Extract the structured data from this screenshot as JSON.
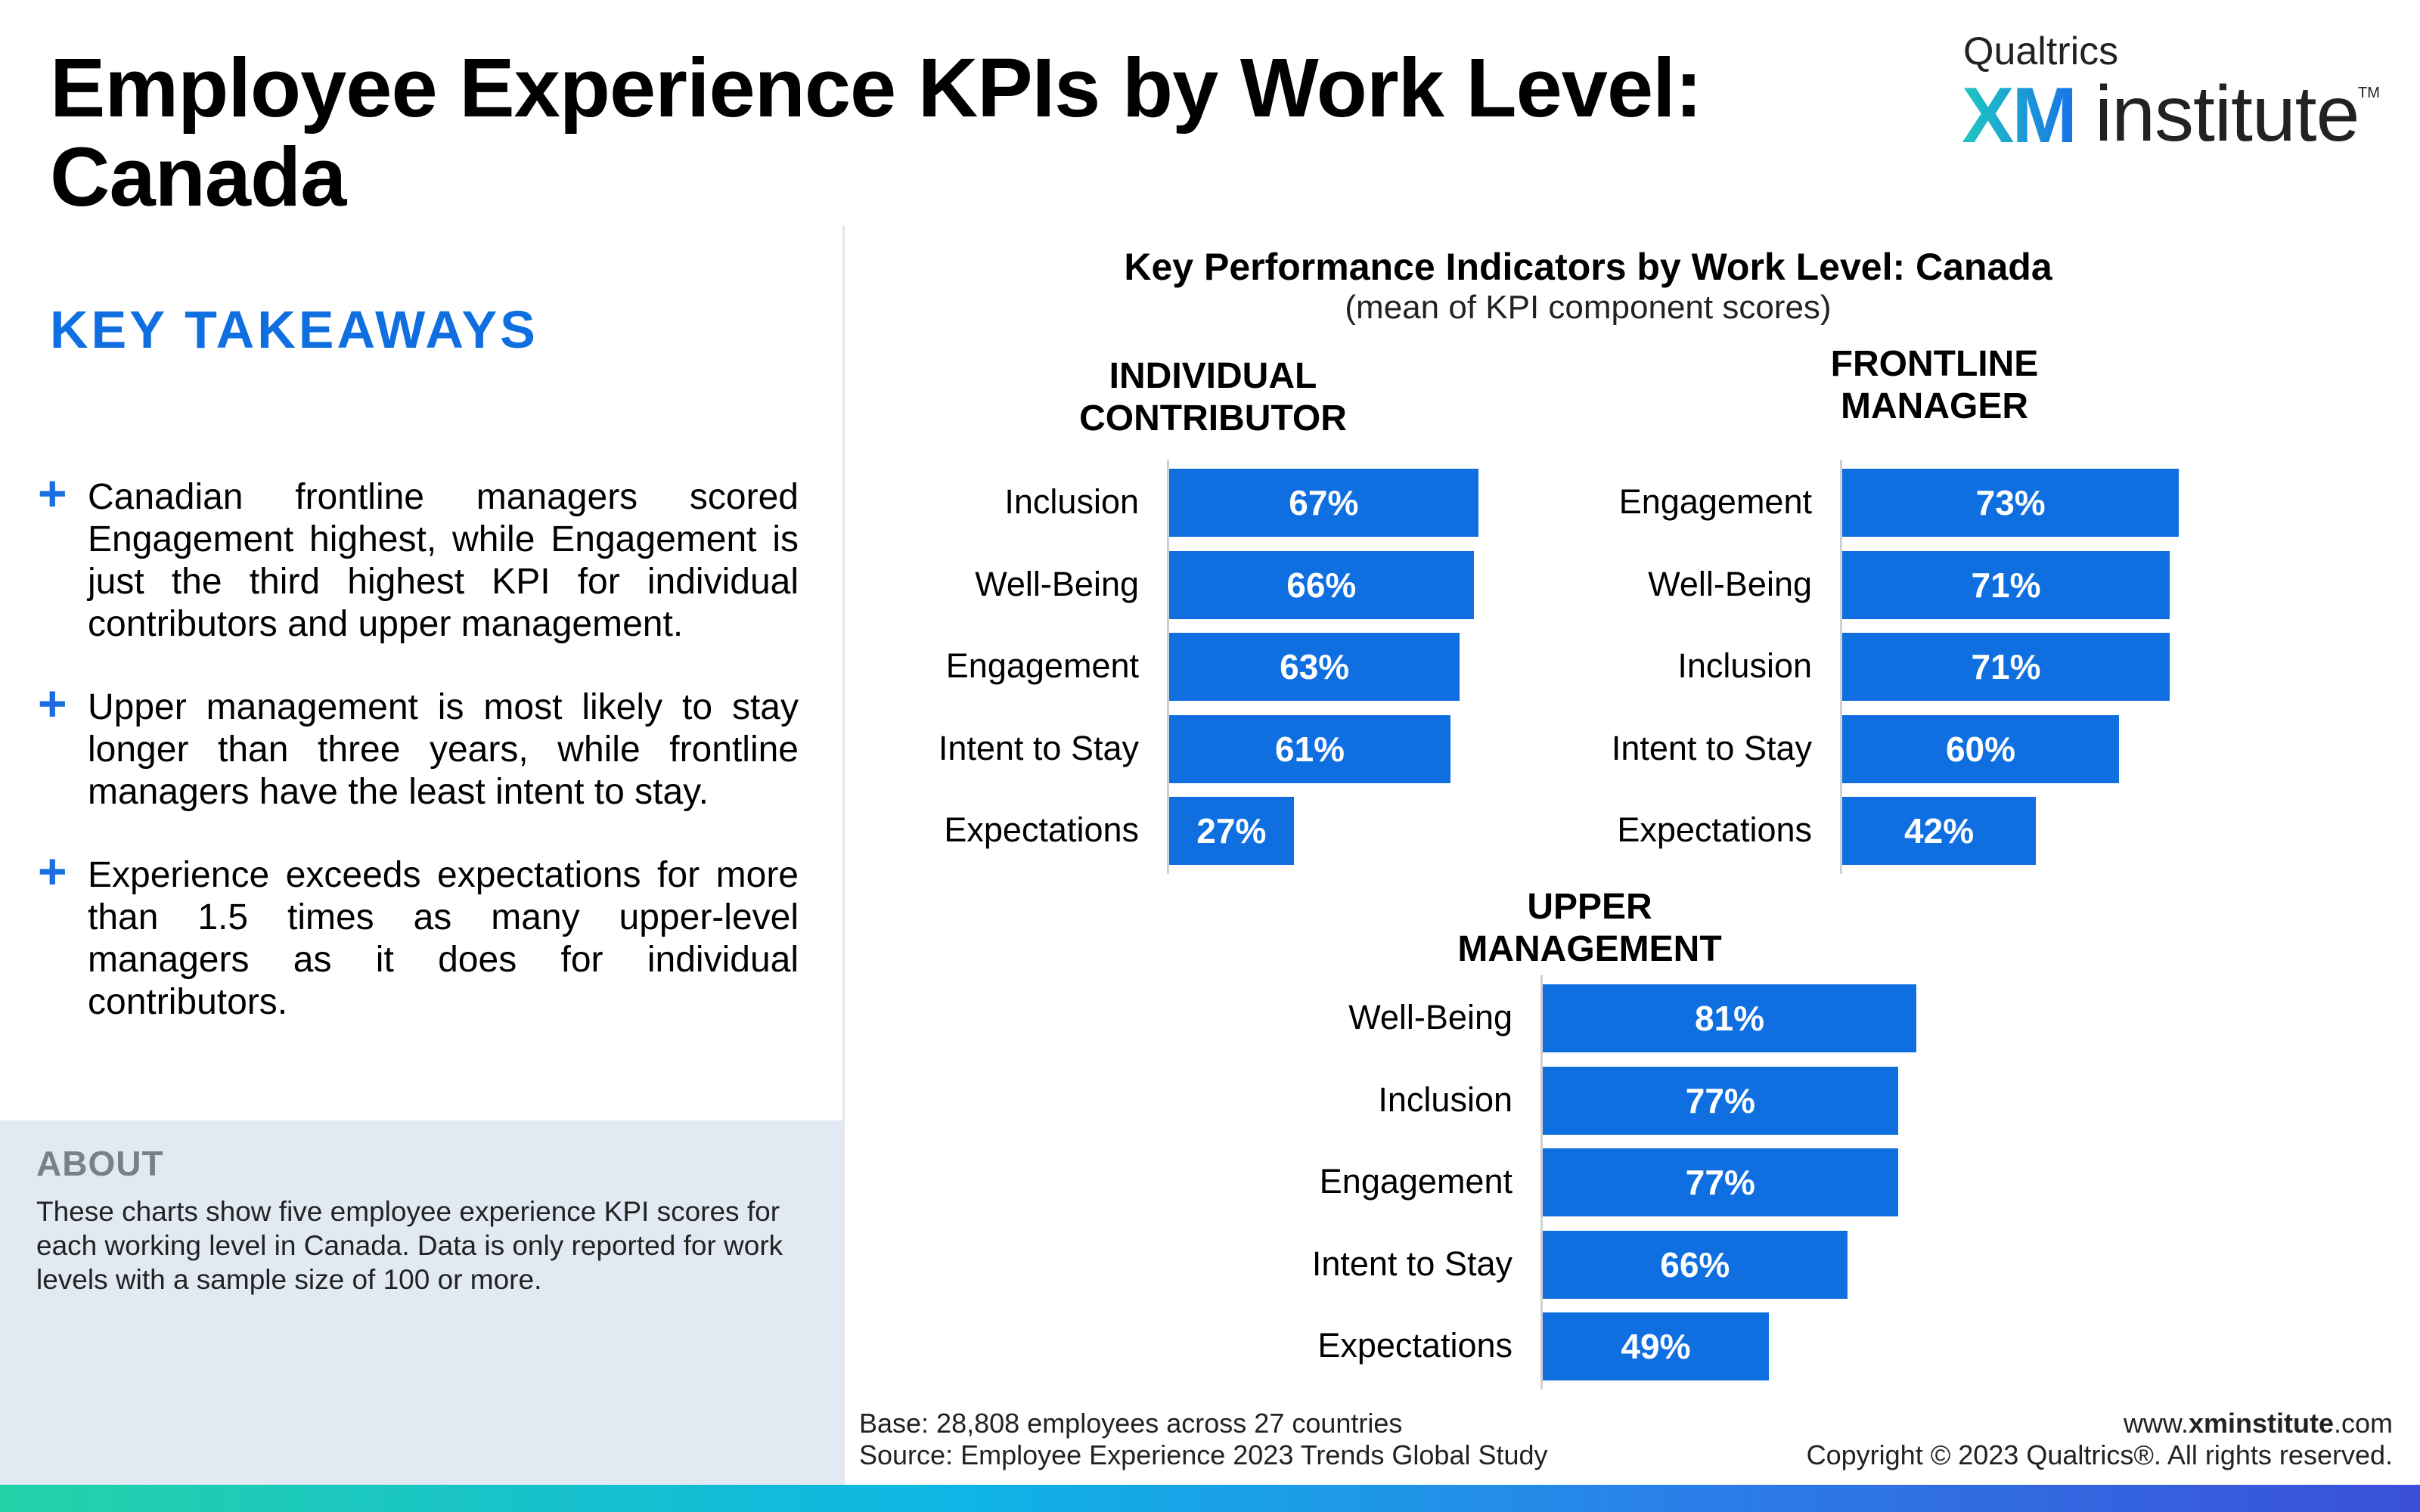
{
  "page": {
    "title_line1": "Employee Experience KPIs by Work Level:",
    "title_line2": "Canada"
  },
  "logo": {
    "small": "Qualtrics",
    "xm": "XM",
    "institute": "institute",
    "tm": "TM"
  },
  "takeaways": {
    "heading": "KEY TAKEAWAYS",
    "items": [
      "Canadian frontline managers scored Engagement highest, while Engagement is just the third highest KPI for individual contributors and upper management.",
      "Upper management is most likely to stay longer than three years, while frontline managers have the least intent to stay.",
      "Experience exceeds expectations for more than 1.5 times as many upper-level managers as it does for individual contributors."
    ]
  },
  "about": {
    "title": "ABOUT",
    "text": "These charts show five employee experience KPI scores for each working level in Canada. Data is only reported for work levels with a sample size of 100 or more."
  },
  "footer": {
    "base": "Base: 28,808 employees across 27 countries",
    "source": "Source: Employee Experience 2023 Trends Global Study",
    "url_pre": "www.",
    "url_bold": "xminstitute",
    "url_post": ".com",
    "copyright": "Copyright © 2023 Qualtrics®. All rights reserved."
  },
  "colors": {
    "bar": "#0f6fe0",
    "heading_blue": "#0f6fe0",
    "about_bg": "#e1e9f2"
  },
  "chart_data": [
    {
      "type": "bar",
      "orientation": "horizontal",
      "title": "Key Performance Indicators by Work Level: Canada",
      "subtitle": "(mean of KPI component scores)",
      "panel": "INDIVIDUAL CONTRIBUTOR",
      "panel_line1": "INDIVIDUAL",
      "panel_line2": "CONTRIBUTOR",
      "unit": "%",
      "xlim": [
        0,
        100
      ],
      "categories": [
        "Inclusion",
        "Well-Being",
        "Engagement",
        "Intent to Stay",
        "Expectations"
      ],
      "values": [
        67,
        66,
        63,
        61,
        27
      ],
      "value_labels": [
        "67%",
        "66%",
        "63%",
        "61%",
        "27%"
      ]
    },
    {
      "type": "bar",
      "orientation": "horizontal",
      "panel": "FRONTLINE MANAGER",
      "panel_line1": "FRONTLINE",
      "panel_line2": "MANAGER",
      "unit": "%",
      "xlim": [
        0,
        100
      ],
      "categories": [
        "Engagement",
        "Well-Being",
        "Inclusion",
        "Intent to Stay",
        "Expectations"
      ],
      "values": [
        73,
        71,
        71,
        60,
        42
      ],
      "value_labels": [
        "73%",
        "71%",
        "71%",
        "60%",
        "42%"
      ]
    },
    {
      "type": "bar",
      "orientation": "horizontal",
      "panel": "UPPER MANAGEMENT",
      "panel_line1": "UPPER",
      "panel_line2": "MANAGEMENT",
      "unit": "%",
      "xlim": [
        0,
        100
      ],
      "categories": [
        "Well-Being",
        "Inclusion",
        "Engagement",
        "Intent to Stay",
        "Expectations"
      ],
      "values": [
        81,
        77,
        77,
        66,
        49
      ],
      "value_labels": [
        "81%",
        "77%",
        "77%",
        "66%",
        "49%"
      ]
    }
  ]
}
